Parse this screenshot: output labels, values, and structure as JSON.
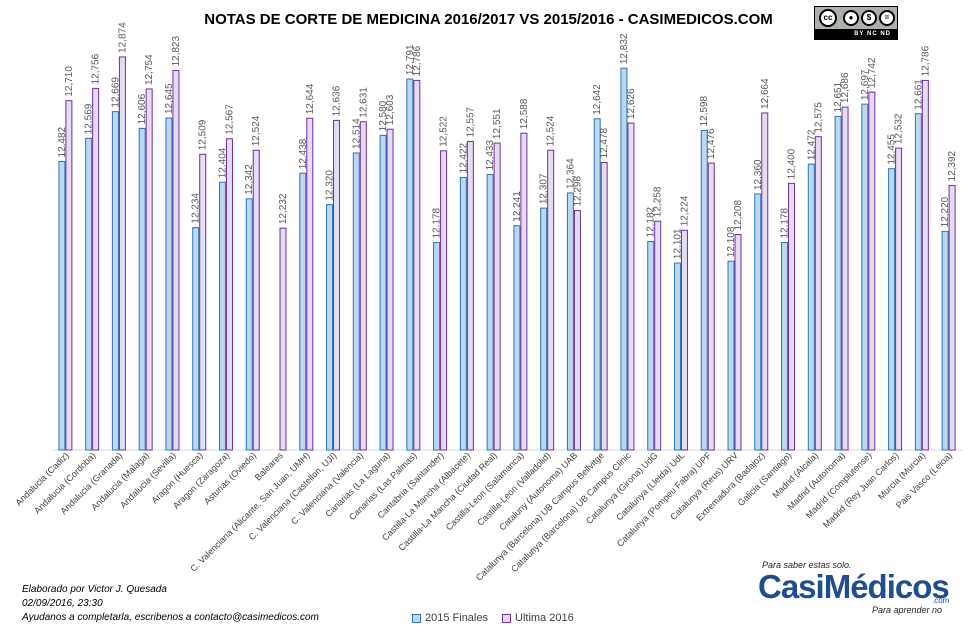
{
  "title": "NOTAS DE CORTE DE MEDICINA 2016/2017  VS 2015/2016  - CASIMEDICOS.COM",
  "license": {
    "text": "BY  NC  ND",
    "icon": "creative-commons-by-nc-nd-icon"
  },
  "footer": {
    "line1": "Elaborado por Victor J. Quesada",
    "line2": "02/09/2016, 23:30",
    "line3": "Ayudanos a completarla, escribenos a contacto@casimedicos.com"
  },
  "logo": {
    "tagline_top": "Para saber estas solo.",
    "wordmark": "CasiMédicos",
    "tld": ".com",
    "tagline_bottom": "Para aprender no"
  },
  "colors": {
    "series1": "#bdd7ee",
    "series1_border": "#2e75b6",
    "series2": "#e4dcf0",
    "series2_border": "#7030a0",
    "label": "#595959",
    "gridline": "#d9d9d9"
  },
  "chart_data": {
    "type": "bar",
    "title": "NOTAS DE CORTE DE MEDICINA 2016/2017  VS 2015/2016  - CASIMEDICOS.COM",
    "ylim": [
      11.4,
      12.9
    ],
    "grid": false,
    "legend_position": "bottom",
    "categories": [
      "Andalucia (Cadiz)",
      "Andalucia (Cordoba)",
      "Andalucia (Granada)",
      "Andalucia (Malaga)",
      "Andalucia (Sevilla)",
      "Aragon (Huesca)",
      "Aragon (Zaragoza)",
      "Asturias (Oviedo)",
      "Baleares",
      "C. Valenciana (Alicante, San Juan, UMH)",
      "C. Valenciana (Castellon, UJI)",
      "C. Valenciana (Valencia)",
      "Canarias (La Laguna)",
      "Canarias (Las Palmas)",
      "Cantabria (Santander)",
      "Castilla-La Mancha (Albacete)",
      "Castilla-La Mancha (Ciudad Real)",
      "Castilla-Leon (Salamanca)",
      "Castilla-Leon (Valladolid)",
      "Cataluny (Autonoma) UAB",
      "Catalunya (Barcelona) UB Campus Bellvitge",
      "Catalunya (Barcelona) UB Campus Clinic",
      "Catalunya (Girona) UdG",
      "Catalunya (Lleida) UdL",
      "Catalunya (Pompeu Fabra) UPF",
      "Catalunya (Reus) URV",
      "Extremadura (Badajoz)",
      "Galicia (Santiago)",
      "Madrid (Alcala)",
      "Madrid (Autonoma)",
      "Madrid (Complutense)",
      "Madrid (Rey Juan Carlos)",
      "Murcia (Murcia)",
      "Pais Vasco (Leioa)"
    ],
    "series": [
      {
        "name": "2015 Finales",
        "values": [
          12.482,
          12.569,
          12.669,
          12.606,
          12.645,
          12.234,
          12.404,
          12.342,
          null,
          12.438,
          12.32,
          12.514,
          12.58,
          12.791,
          12.178,
          12.422,
          12.433,
          12.241,
          12.307,
          12.364,
          12.642,
          12.832,
          12.182,
          12.101,
          12.598,
          12.108,
          12.36,
          12.178,
          12.472,
          12.651,
          12.697,
          12.455,
          12.661,
          12.22
        ]
      },
      {
        "name": "Ultima 2016",
        "values": [
          12.71,
          12.756,
          12.874,
          12.754,
          12.823,
          12.509,
          12.567,
          12.524,
          12.232,
          12.644,
          12.636,
          12.631,
          12.603,
          12.786,
          12.522,
          12.557,
          12.551,
          12.588,
          12.524,
          12.298,
          12.478,
          12.626,
          12.258,
          12.224,
          12.476,
          12.208,
          12.664,
          12.4,
          12.575,
          12.686,
          12.742,
          12.532,
          12.786,
          12.392
        ]
      }
    ],
    "data_labels": {
      "s1": [
        "12,482",
        "12,569",
        "12,669",
        "12,606",
        "12,645",
        "12,234",
        "12,404",
        "12,342",
        "",
        "12,438",
        "12,320",
        "12,514",
        "12,580",
        "12,791",
        "12,178",
        "12,422",
        "12,433",
        "12,241",
        "12,307",
        "12,364",
        "12,642",
        "12,832",
        "12,182",
        "12,101",
        "12,598",
        "12,108",
        "12,360",
        "12,178",
        "12,472",
        "12,651",
        "12,697",
        "12,455",
        "12,661",
        "12,220"
      ],
      "s2": [
        "12,710",
        "12,756",
        "12,874",
        "12,754",
        "12,823",
        "12,509",
        "12,567",
        "12,524",
        "12,232",
        "12,644",
        "12,636",
        "12,631",
        "12,603",
        "12,786",
        "12,522",
        "12,557",
        "12,551",
        "12,588",
        "12,524",
        "12,298",
        "12,478",
        "12,626",
        "12,258",
        "12,224",
        "12,476",
        "12,208",
        "12,664",
        "12,400",
        "12,575",
        "12,686",
        "12,742",
        "12,532",
        "12,786",
        "12,392"
      ]
    }
  }
}
